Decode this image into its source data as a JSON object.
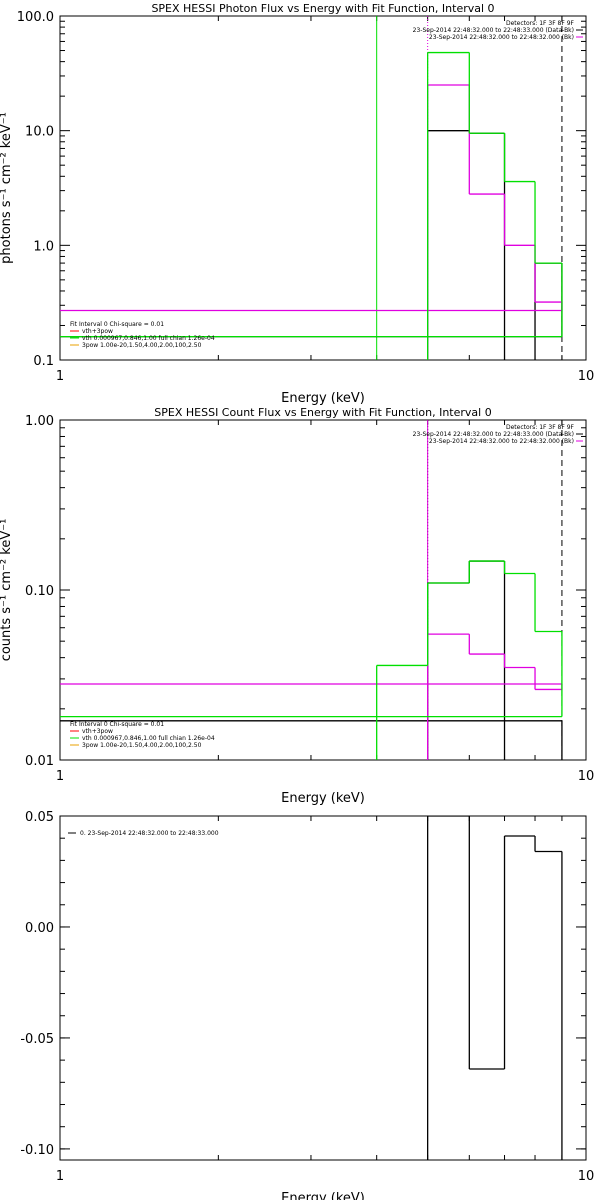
{
  "colors": {
    "black": "#000000",
    "magenta": "#e000e0",
    "green": "#00e000",
    "red": "#ff0000",
    "orange": "#e8a000"
  },
  "chart_data": [
    {
      "type": "line",
      "title": "SPEX HESSI Photon Flux vs Energy with Fit Function, Interval 0",
      "xlabel": "Energy (keV)",
      "ylabel": "photons s⁻¹ cm⁻² keV⁻¹",
      "xscale": "log",
      "yscale": "log",
      "xlim": [
        1,
        10
      ],
      "ylim": [
        0.1,
        100
      ],
      "xticks": [
        {
          "v": 1,
          "label": "1"
        },
        {
          "v": 10,
          "label": "10"
        }
      ],
      "yticks": [
        {
          "v": 0.1,
          "label": "0.1"
        },
        {
          "v": 1,
          "label": "1.0"
        },
        {
          "v": 10,
          "label": "10.0"
        },
        {
          "v": 100,
          "label": "100.0"
        }
      ],
      "legend_top": [
        "Detectors: 1F 3F 8F 9F",
        "23-Sep-2014 22:48:32.000 to 22:48:33.000 (Data-Bk)",
        "23-Sep-2014 22:48:32.000 to 22:48:32.000 (Bk)"
      ],
      "legend_bottom": [
        "Fit Interval 0   Chi-square = 0.01",
        "vth+3pow",
        "vth 0.000967,0.846,1.00  full chian 1.26e-04",
        "3pow 1.00e-20,1.50,4.00,2.00,100,2.50"
      ],
      "edges": [
        4,
        5,
        6,
        7,
        8,
        9
      ],
      "series": [
        {
          "values": [
            null,
            10,
            9.5,
            null,
            0.7,
            0.16
          ],
          "style": "black"
        },
        {
          "values": [
            null,
            25,
            2.8,
            1.0,
            0.32,
            0.27
          ],
          "style": "magenta"
        },
        {
          "values": [
            null,
            48,
            9.5,
            3.6,
            0.7,
            0.16
          ],
          "style": "green"
        }
      ],
      "vlines": [
        {
          "x": 4,
          "style": "green-solid"
        },
        {
          "x": 5,
          "style": "magenta-dotted"
        },
        {
          "x": 9,
          "style": "black-dashed"
        }
      ]
    },
    {
      "type": "line",
      "title": "SPEX HESSI Count Flux vs Energy with Fit Function, Interval 0",
      "xlabel": "Energy (keV)",
      "ylabel": "counts s⁻¹ cm⁻² keV⁻¹",
      "xscale": "log",
      "yscale": "log",
      "xlim": [
        1,
        10
      ],
      "ylim": [
        0.01,
        1
      ],
      "xticks": [
        {
          "v": 1,
          "label": "1"
        },
        {
          "v": 10,
          "label": "10"
        }
      ],
      "yticks": [
        {
          "v": 0.01,
          "label": "0.01"
        },
        {
          "v": 0.1,
          "label": "0.10"
        },
        {
          "v": 1,
          "label": "1.00"
        }
      ],
      "legend_top": [
        "Detectors: 1F 3F 8F 9F",
        "23-Sep-2014 22:48:32.000 to 22:48:33.000 (Data-Bk)",
        "23-Sep-2014 22:48:32.000 to 22:48:32.000 (Bk)"
      ],
      "legend_bottom": [
        "Fit Interval 0   Chi-square = 0.01",
        "vth+3pow",
        "vth 0.000967,0.846,1.00  full chian 1.26e-04",
        "3pow 1.00e-20,1.50,4.00,2.00,100,2.50"
      ],
      "edges": [
        4,
        5,
        6,
        7,
        8,
        9
      ],
      "series": [
        {
          "values": [
            null,
            0.11,
            0.148,
            null,
            null,
            0.017
          ],
          "style": "black"
        },
        {
          "values": [
            null,
            0.055,
            0.042,
            0.035,
            0.026,
            0.028
          ],
          "style": "magenta"
        },
        {
          "values": [
            0.036,
            0.11,
            0.148,
            0.125,
            0.057,
            0.018
          ],
          "style": "green"
        }
      ],
      "vlines": [
        {
          "x": 5,
          "style": "black-dotted"
        },
        {
          "x": 5,
          "style": "magenta-solid"
        },
        {
          "x": 9,
          "style": "black-dashed"
        }
      ]
    },
    {
      "type": "line",
      "title": "",
      "xlabel": "Energy (keV)",
      "ylabel": "",
      "xscale": "log",
      "yscale": "linear",
      "xlim": [
        1,
        10
      ],
      "ylim": [
        -0.105,
        0.05
      ],
      "xticks": [
        {
          "v": 1,
          "label": "1"
        },
        {
          "v": 10,
          "label": "10"
        }
      ],
      "yticks": [
        {
          "v": -0.1,
          "label": "-0.10"
        },
        {
          "v": -0.05,
          "label": "-0.05"
        },
        {
          "v": 0,
          "label": "0.00"
        },
        {
          "v": 0.05,
          "label": "0.05"
        }
      ],
      "legend_top": [
        "0. 23-Sep-2014 22:48:32.000 to 22:48:33.000"
      ],
      "legend_bottom": [],
      "edges": [
        5,
        6,
        7,
        8,
        9
      ],
      "series": [
        {
          "values": [
            0.05,
            -0.064,
            0.041,
            0.034
          ],
          "style": "black"
        }
      ],
      "vlines": []
    }
  ]
}
